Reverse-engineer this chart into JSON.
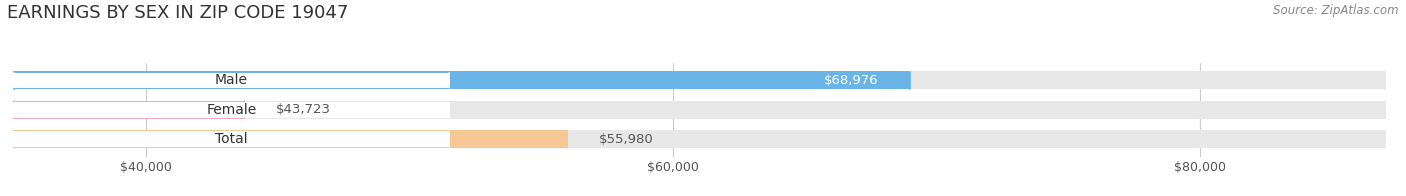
{
  "title": "EARNINGS BY SEX IN ZIP CODE 19047",
  "source": "Source: ZipAtlas.com",
  "categories": [
    "Male",
    "Female",
    "Total"
  ],
  "values": [
    68976,
    43723,
    55980
  ],
  "bar_colors": [
    "#6ab4e8",
    "#f4a8c0",
    "#f5c896"
  ],
  "bar_bg_color": "#e8e8e8",
  "label_colors": [
    "#ffffff",
    "#555555",
    "#555555"
  ],
  "label_values": [
    "$68,976",
    "$43,723",
    "$55,980"
  ],
  "bar_height": 0.62,
  "xmin": 35000,
  "xmax": 87000,
  "xticks": [
    40000,
    60000,
    80000
  ],
  "xtick_labels": [
    "$40,000",
    "$60,000",
    "$80,000"
  ],
  "title_fontsize": 13,
  "label_fontsize": 9.5,
  "tick_fontsize": 9,
  "cat_fontsize": 10,
  "source_fontsize": 8.5,
  "bg_color": "#ffffff",
  "grid_color": "#cccccc"
}
